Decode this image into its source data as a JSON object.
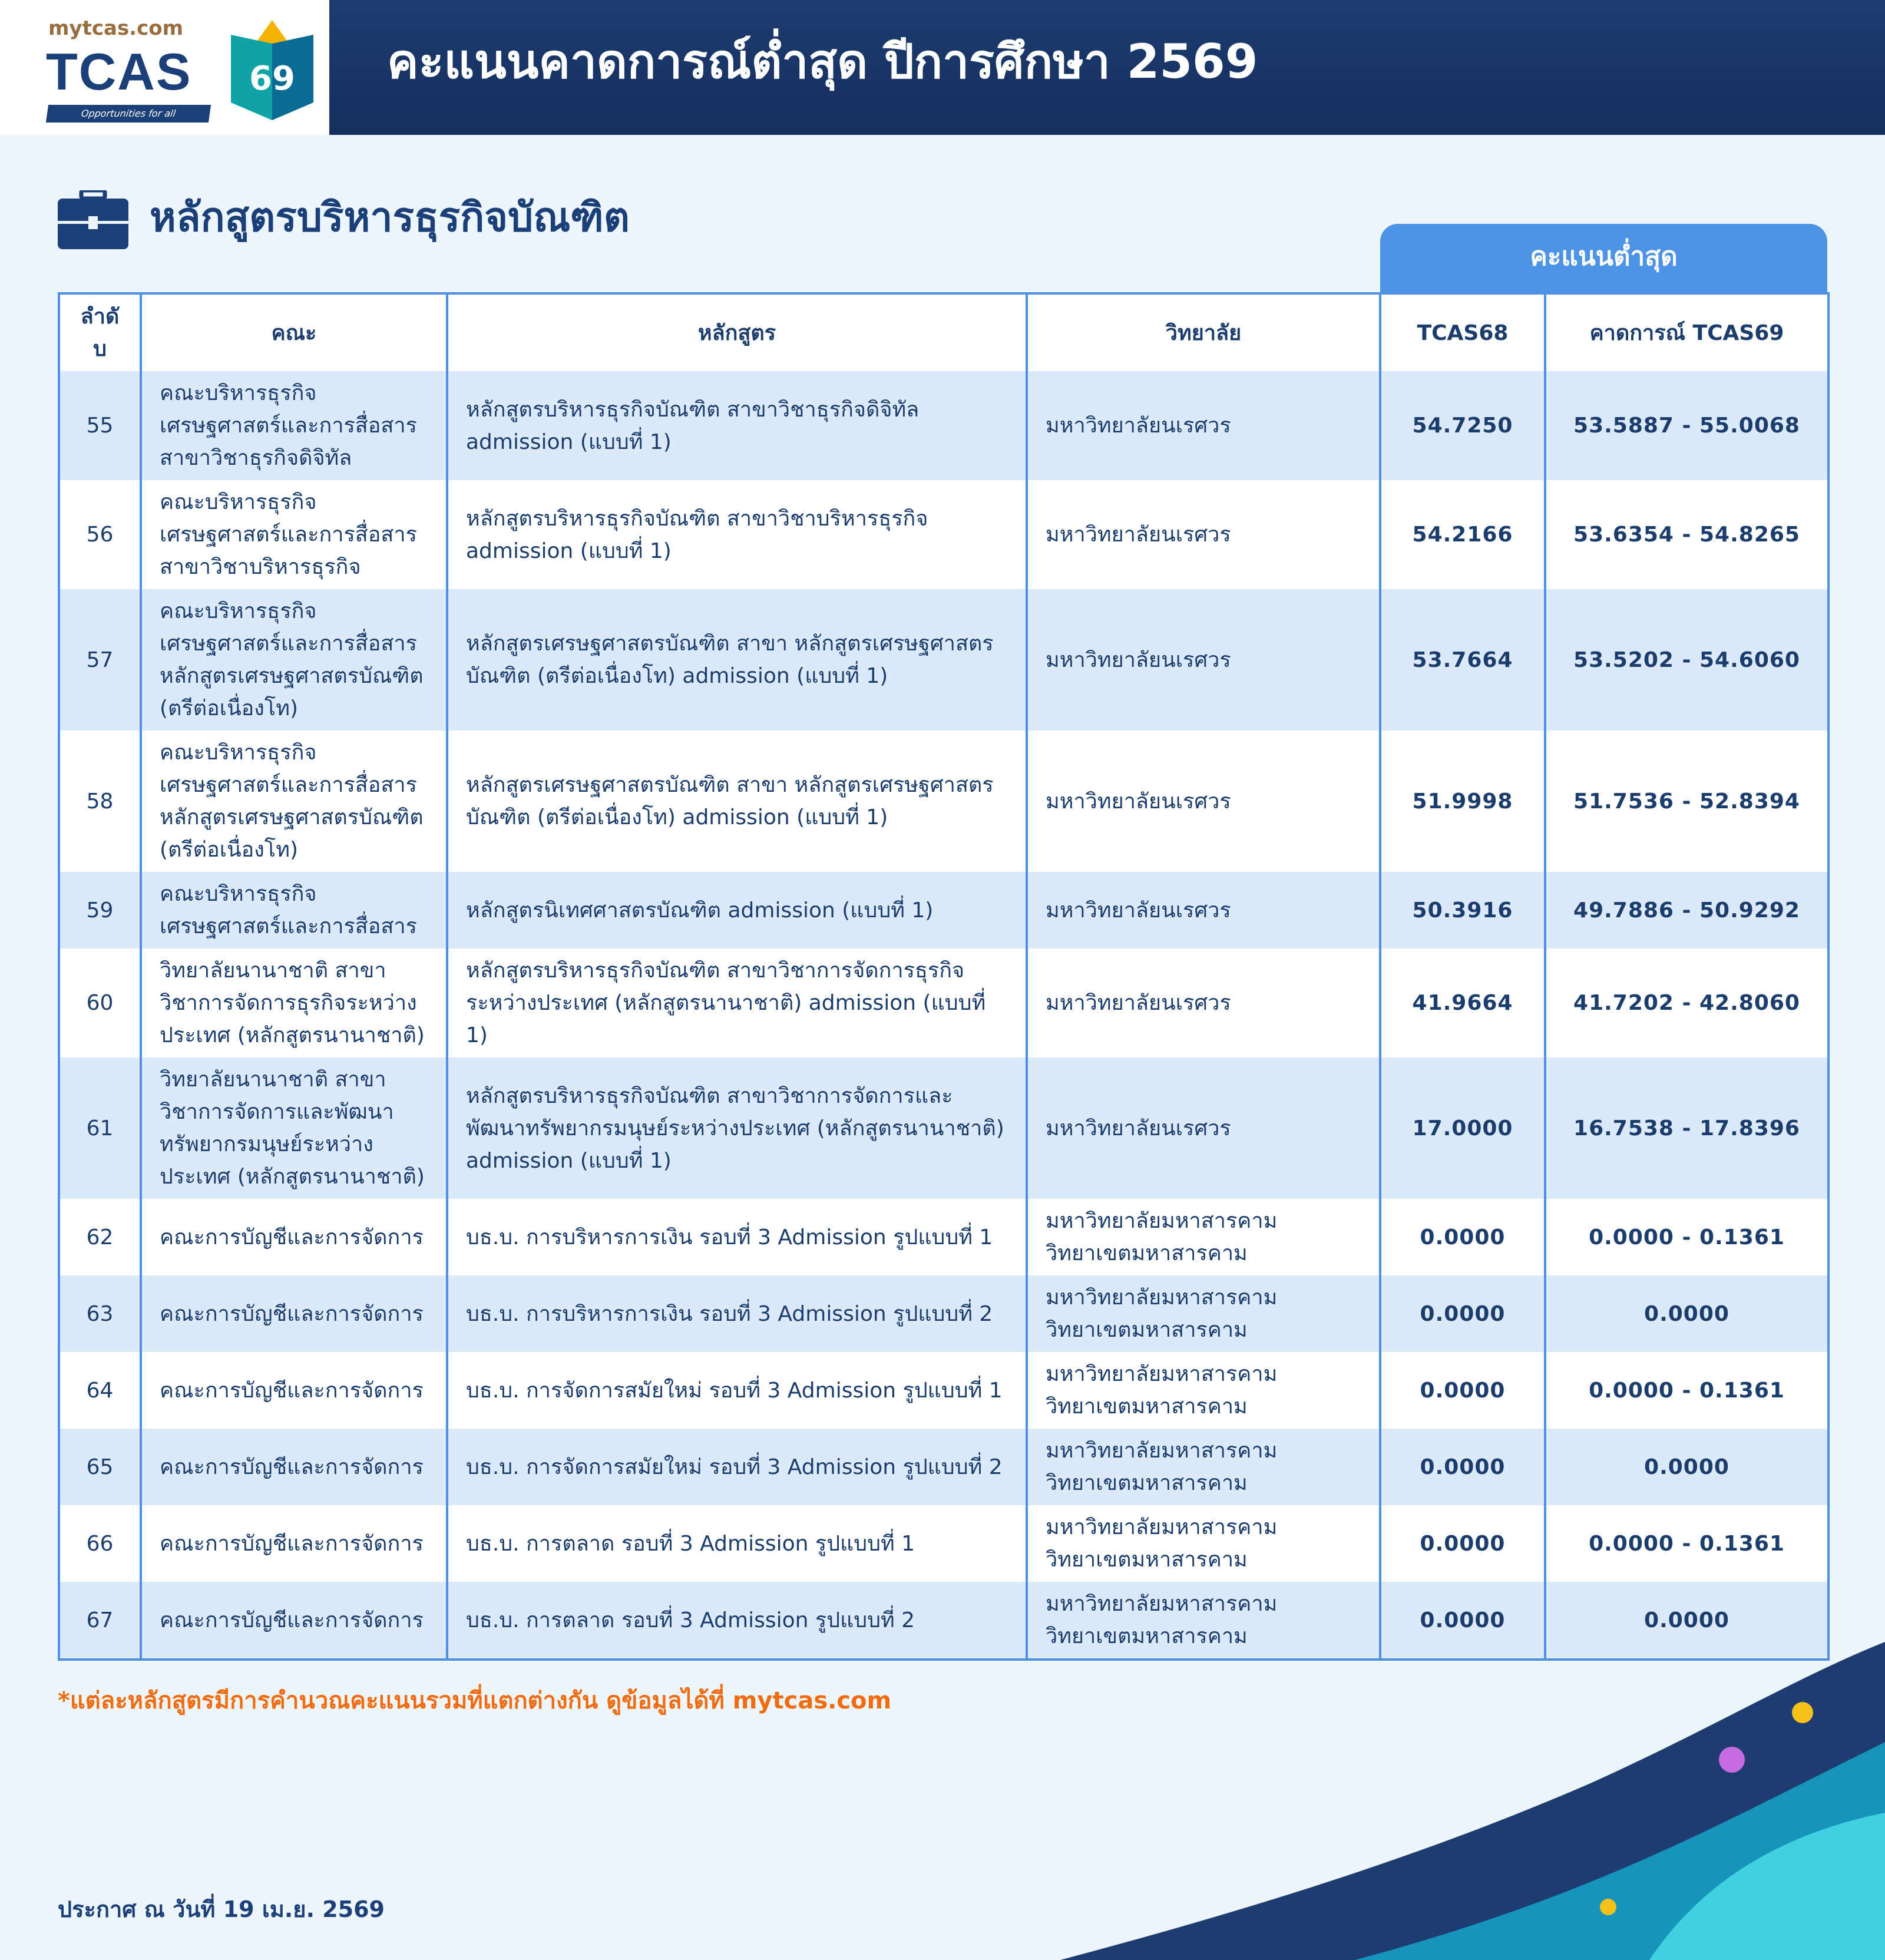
{
  "header": {
    "site": "mytcas.com",
    "brand": "TCAS",
    "brand_year": "69",
    "tagline": "Opportunities for all",
    "title": "คะแนนคาดการณ์ต่ำสุด ปีการศึกษา 2569"
  },
  "section": {
    "title": "หลักสูตรบริหารธุรกิจบัณฑิต",
    "icon": "briefcase-icon"
  },
  "table": {
    "group_header": "คะแนนต่ำสุด",
    "columns": [
      "ลำดับ",
      "คณะ",
      "หลักสูตร",
      "วิทยาลัย",
      "TCAS68",
      "คาดการณ์ TCAS69"
    ],
    "rows": [
      {
        "no": "55",
        "faculty": "คณะบริหารธุรกิจ เศรษฐศาสตร์และการสื่อสาร สาขาวิชาธุรกิจดิจิทัล",
        "program": "หลักสูตรบริหารธุรกิจบัณฑิต สาขาวิชาธุรกิจดิจิทัล admission (แบบที่ 1)",
        "university": "มหาวิทยาลัยนเรศวร",
        "tcas68": "54.7250",
        "tcas69": "53.5887 - 55.0068"
      },
      {
        "no": "56",
        "faculty": "คณะบริหารธุรกิจ เศรษฐศาสตร์และการสื่อสาร สาขาวิชาบริหารธุรกิจ",
        "program": "หลักสูตรบริหารธุรกิจบัณฑิต สาขาวิชาบริหารธุรกิจ admission (แบบที่ 1)",
        "university": "มหาวิทยาลัยนเรศวร",
        "tcas68": "54.2166",
        "tcas69": "53.6354 - 54.8265"
      },
      {
        "no": "57",
        "faculty": "คณะบริหารธุรกิจ เศรษฐศาสตร์และการสื่อสาร หลักสูตรเศรษฐศาสตรบัณฑิต (ตรีต่อเนื่องโท)",
        "program": "หลักสูตรเศรษฐศาสตรบัณฑิต สาขา หลักสูตรเศรษฐศาสตรบัณฑิต (ตรีต่อเนื่องโท) admission (แบบที่ 1)",
        "university": "มหาวิทยาลัยนเรศวร",
        "tcas68": "53.7664",
        "tcas69": "53.5202 - 54.6060"
      },
      {
        "no": "58",
        "faculty": "คณะบริหารธุรกิจ เศรษฐศาสตร์และการสื่อสาร หลักสูตรเศรษฐศาสตรบัณฑิต (ตรีต่อเนื่องโท)",
        "program": "หลักสูตรเศรษฐศาสตรบัณฑิต สาขา หลักสูตรเศรษฐศาสตรบัณฑิต (ตรีต่อเนื่องโท) admission (แบบที่ 1)",
        "university": "มหาวิทยาลัยนเรศวร",
        "tcas68": "51.9998",
        "tcas69": "51.7536 - 52.8394"
      },
      {
        "no": "59",
        "faculty": "คณะบริหารธุรกิจ เศรษฐศาสตร์และการสื่อสาร",
        "program": "หลักสูตรนิเทศศาสตรบัณฑิต admission (แบบที่ 1)",
        "university": "มหาวิทยาลัยนเรศวร",
        "tcas68": "50.3916",
        "tcas69": "49.7886 - 50.9292"
      },
      {
        "no": "60",
        "faculty": "วิทยาลัยนานาชาติ สาขาวิชาการจัดการธุรกิจระหว่างประเทศ (หลักสูตรนานาชาติ)",
        "program": "หลักสูตรบริหารธุรกิจบัณฑิต สาขาวิชาการจัดการธุรกิจระหว่างประเทศ (หลักสูตรนานาชาติ) admission (แบบที่ 1)",
        "university": "มหาวิทยาลัยนเรศวร",
        "tcas68": "41.9664",
        "tcas69": "41.7202 - 42.8060"
      },
      {
        "no": "61",
        "faculty": "วิทยาลัยนานาชาติ สาขาวิชาการจัดการและพัฒนาทรัพยากรมนุษย์ระหว่างประเทศ (หลักสูตรนานาชาติ)",
        "program": "หลักสูตรบริหารธุรกิจบัณฑิต สาขาวิชาการจัดการและพัฒนาทรัพยากรมนุษย์ระหว่างประเทศ (หลักสูตรนานาชาติ) admission (แบบที่ 1)",
        "university": "มหาวิทยาลัยนเรศวร",
        "tcas68": "17.0000",
        "tcas69": "16.7538 - 17.8396"
      },
      {
        "no": "62",
        "faculty": "คณะการบัญชีและการจัดการ",
        "program": "บธ.บ. การบริหารการเงิน รอบที่ 3 Admission รูปแบบที่ 1",
        "university": "มหาวิทยาลัยมหาสารคาม วิทยาเขตมหาสารคาม",
        "tcas68": "0.0000",
        "tcas69": "0.0000 - 0.1361"
      },
      {
        "no": "63",
        "faculty": "คณะการบัญชีและการจัดการ",
        "program": "บธ.บ. การบริหารการเงิน รอบที่ 3 Admission รูปแบบที่ 2",
        "university": "มหาวิทยาลัยมหาสารคาม วิทยาเขตมหาสารคาม",
        "tcas68": "0.0000",
        "tcas69": "0.0000"
      },
      {
        "no": "64",
        "faculty": "คณะการบัญชีและการจัดการ",
        "program": "บธ.บ. การจัดการสมัยใหม่ รอบที่ 3 Admission รูปแบบที่ 1",
        "university": "มหาวิทยาลัยมหาสารคาม วิทยาเขตมหาสารคาม",
        "tcas68": "0.0000",
        "tcas69": "0.0000 - 0.1361"
      },
      {
        "no": "65",
        "faculty": "คณะการบัญชีและการจัดการ",
        "program": "บธ.บ. การจัดการสมัยใหม่ รอบที่ 3 Admission รูปแบบที่ 2",
        "university": "มหาวิทยาลัยมหาสารคาม วิทยาเขตมหาสารคาม",
        "tcas68": "0.0000",
        "tcas69": "0.0000"
      },
      {
        "no": "66",
        "faculty": "คณะการบัญชีและการจัดการ",
        "program": "บธ.บ. การตลาด รอบที่ 3 Admission รูปแบบที่ 1",
        "university": "มหาวิทยาลัยมหาสารคาม วิทยาเขตมหาสารคาม",
        "tcas68": "0.0000",
        "tcas69": "0.0000 - 0.1361"
      },
      {
        "no": "67",
        "faculty": "คณะการบัญชีและการจัดการ",
        "program": "บธ.บ. การตลาด รอบที่ 3 Admission รูปแบบที่ 2",
        "university": "มหาวิทยาลัยมหาสารคาม วิทยาเขตมหาสารคาม",
        "tcas68": "0.0000",
        "tcas69": "0.0000"
      }
    ]
  },
  "footer": {
    "note": "*แต่ละหลักสูตรมีการคำนวณคะแนนรวมที่แตกต่างกัน ดูข้อมูลได้ที่ mytcas.com",
    "date": "ประกาศ ณ วันที่ 19 เม.ย. 2569"
  },
  "colors": {
    "header_bg": "#1d3c70",
    "accent": "#4e94e6",
    "text": "#1b3d6e",
    "note": "#f26b0f",
    "row_alt": "#dce9f8"
  }
}
